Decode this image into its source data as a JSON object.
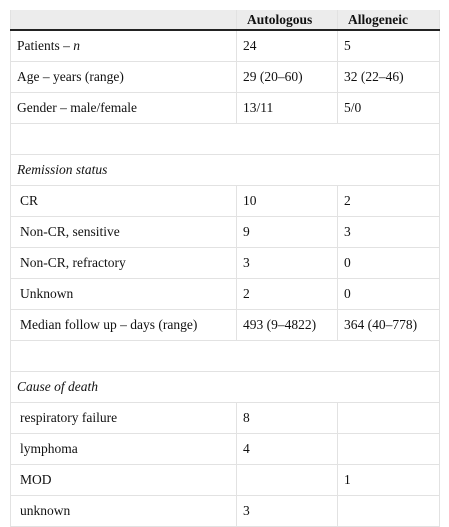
{
  "table": {
    "header": [
      null,
      "Autologous",
      "Allogeneic"
    ],
    "groups": [
      {
        "rows": [
          [
            {
              "text": "Patients –",
              "italic": "n"
            },
            "24",
            "5"
          ],
          [
            {
              "text": "Age – years (range)"
            },
            "29 (20–60)",
            "32 (22–46)"
          ],
          [
            {
              "text": "Gender – male/female"
            },
            "13/11",
            "5/0"
          ]
        ]
      },
      {
        "title": "Remission status",
        "rows": [
          [
            {
              "text": "CR"
            },
            "10",
            "2"
          ],
          [
            {
              "text": "Non-CR, sensitive"
            },
            "9",
            "3"
          ],
          [
            {
              "text": "Non-CR, refractory"
            },
            "3",
            "0"
          ],
          [
            {
              "text": "Unknown"
            },
            "2",
            "0"
          ],
          [
            {
              "text": "Median follow up – days (range)"
            },
            "493 (9–4822)",
            "364 (40–778)"
          ]
        ]
      },
      {
        "title": "Cause of death",
        "rows": [
          [
            {
              "text": "respiratory failure"
            },
            "8",
            null
          ],
          [
            {
              "text": "lymphoma"
            },
            "4",
            null
          ],
          [
            {
              "text": "MOD"
            },
            null,
            "1"
          ],
          [
            {
              "text": "unknown"
            },
            "3",
            null
          ]
        ]
      }
    ]
  }
}
